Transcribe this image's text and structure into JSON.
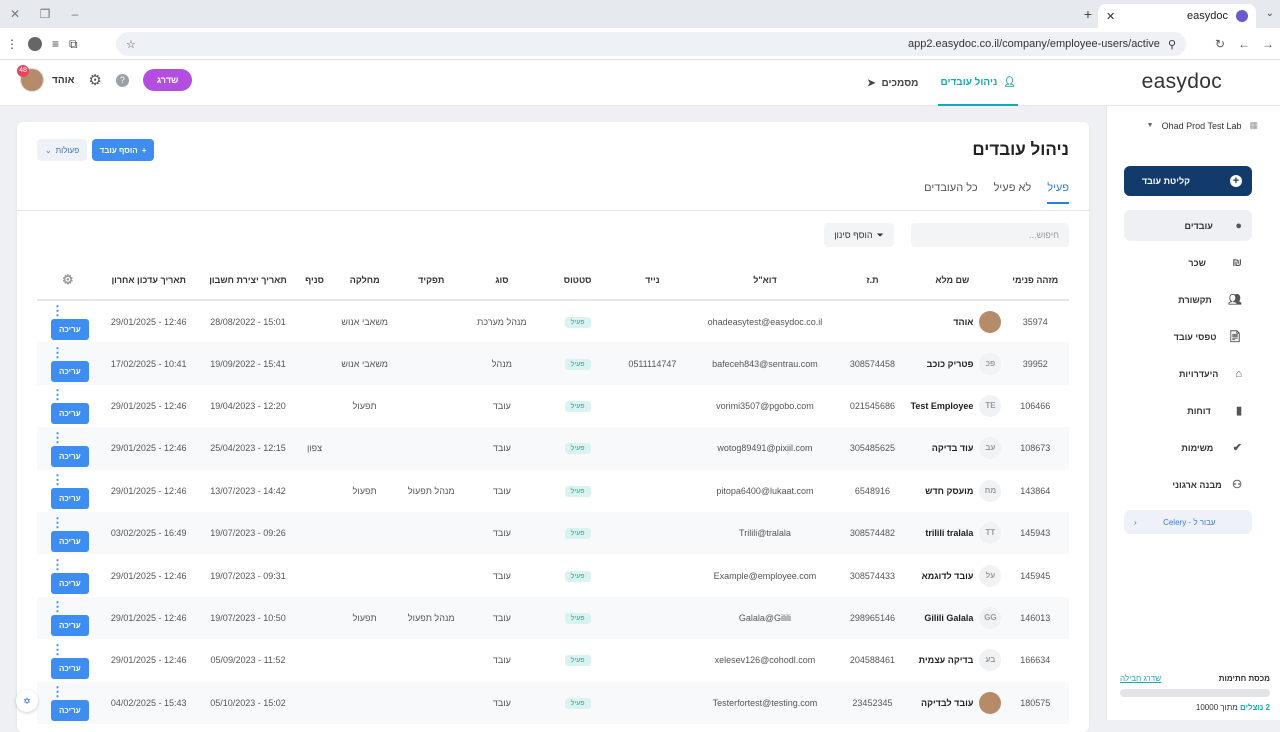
{
  "browser": {
    "tab_title": "easydoc",
    "url": "app2.easydoc.co.il/company/employee-users/active"
  },
  "header": {
    "logo": "easydoc",
    "nav": [
      {
        "label": "ניהול עובדים",
        "icon": "person-icon",
        "active": true
      },
      {
        "label": "מסמכים",
        "icon": "send-icon",
        "active": false
      }
    ],
    "user_name": "אוהד",
    "notification_count": "48",
    "upgrade_label": "שדרג"
  },
  "sidebar": {
    "company": "Ohad Prod Test Lab",
    "onboard_label": "קליטת עובד",
    "items": [
      {
        "label": "עובדים",
        "icon": "user-circle-icon",
        "active": true
      },
      {
        "label": "שכר",
        "icon": "shekel-icon",
        "active": false
      },
      {
        "label": "תקשורת",
        "icon": "people-icon",
        "active": false
      },
      {
        "label": "טפסי עובד",
        "icon": "forms-icon",
        "active": false
      },
      {
        "label": "היעדרויות",
        "icon": "home-icon",
        "active": false
      },
      {
        "label": "דוחות",
        "icon": "chart-icon",
        "active": false
      },
      {
        "label": "משימות",
        "icon": "check-icon",
        "active": false
      },
      {
        "label": "מבנה ארגוני",
        "icon": "org-icon",
        "active": false
      }
    ],
    "celery_label": "עבור ל - Celery",
    "signatures": {
      "title": "מכסת חתימות",
      "link": "שדרג חבילה",
      "used": "2 נוצלים",
      "total": "מתוך 10000"
    }
  },
  "main": {
    "title": "ניהול עובדים",
    "add_label": "הוסף עובד",
    "actions_label": "פעולות",
    "tabs": [
      "פעיל",
      "לא פעיל",
      "כל העובדים"
    ],
    "search_placeholder": "חיפוש...",
    "filter_label": "הוסף סינון",
    "columns": [
      "מזהה פנימי",
      "שם מלא",
      "ת.ז",
      "דוא\"ל",
      "נייד",
      "סטטוס",
      "סוג",
      "תפקיד",
      "מחלקה",
      "סניף",
      "תאריך יצירת חשבון",
      "תאריך עדכון אחרון"
    ],
    "edit_label": "עריכה",
    "rows": [
      {
        "id": "35974",
        "initials": "",
        "photo": true,
        "name": "אוהד",
        "tz": "",
        "email": "ohadeasytest@easydoc.co.il",
        "mobile": "",
        "status": "פעיל",
        "type": "מנהל מערכת",
        "role": "",
        "dept": "משאבי אנוש",
        "branch": "",
        "created": "15:01 - 28/08/2022",
        "updated": "12:46 - 29/01/2025"
      },
      {
        "id": "39952",
        "initials": "פכ",
        "photo": false,
        "name": "פטריק כוכב",
        "tz": "308574458",
        "email": "bafeceh843@sentrau.com",
        "mobile": "0511114747",
        "status": "פעיל",
        "type": "מנהל",
        "role": "",
        "dept": "משאבי אנוש",
        "branch": "",
        "created": "15:41 - 19/09/2022",
        "updated": "10:41 - 17/02/2025"
      },
      {
        "id": "106466",
        "initials": "TE",
        "photo": false,
        "name": "Test Employee",
        "tz": "021545686",
        "email": "vorimi3507@pgobo.com",
        "mobile": "",
        "status": "פעיל",
        "type": "עובד",
        "role": "",
        "dept": "תפעול",
        "branch": "",
        "created": "12:20 - 19/04/2023",
        "updated": "12:46 - 29/01/2025"
      },
      {
        "id": "108673",
        "initials": "עב",
        "photo": false,
        "name": "עוד בדיקה",
        "tz": "305485625",
        "email": "wotog89491@pixiil.com",
        "mobile": "",
        "status": "פעיל",
        "type": "עובד",
        "role": "",
        "dept": "",
        "branch": "צפון",
        "created": "12:15 - 25/04/2023",
        "updated": "12:46 - 29/01/2025"
      },
      {
        "id": "143864",
        "initials": "מח",
        "photo": false,
        "name": "מועסק חדש",
        "tz": "6548916",
        "email": "pitopa6400@lukaat.com",
        "mobile": "",
        "status": "פעיל",
        "type": "עובד",
        "role": "מנהל תפעול",
        "dept": "תפעול",
        "branch": "",
        "created": "14:42 - 13/07/2023",
        "updated": "12:46 - 29/01/2025"
      },
      {
        "id": "145943",
        "initials": "TT",
        "photo": false,
        "name": "trilili tralala",
        "tz": "308574482",
        "email": "Trilili@tralala",
        "mobile": "",
        "status": "פעיל",
        "type": "עובד",
        "role": "",
        "dept": "",
        "branch": "",
        "created": "09:26 - 19/07/2023",
        "updated": "16:49 - 03/02/2025"
      },
      {
        "id": "145945",
        "initials": "על",
        "photo": false,
        "name": "עובד לדוגמא",
        "tz": "308574433",
        "email": "Example@employee.com",
        "mobile": "",
        "status": "פעיל",
        "type": "עובד",
        "role": "",
        "dept": "",
        "branch": "",
        "created": "09:31 - 19/07/2023",
        "updated": "12:46 - 29/01/2025"
      },
      {
        "id": "146013",
        "initials": "GG",
        "photo": false,
        "name": "Gilili Galala",
        "tz": "298965146",
        "email": "Galala@Gilili",
        "mobile": "",
        "status": "פעיל",
        "type": "עובד",
        "role": "מנהל תפעול",
        "dept": "תפעול",
        "branch": "",
        "created": "10:50 - 19/07/2023",
        "updated": "12:46 - 29/01/2025"
      },
      {
        "id": "166634",
        "initials": "בע",
        "photo": false,
        "name": "בדיקה עצמית",
        "tz": "204588461",
        "email": "xelesev126@cohodl.com",
        "mobile": "",
        "status": "פעיל",
        "type": "עובד",
        "role": "",
        "dept": "",
        "branch": "",
        "created": "11:52 - 05/09/2023",
        "updated": "12:46 - 29/01/2025"
      },
      {
        "id": "180575",
        "initials": "",
        "photo": true,
        "name": "עובד לבדיקה",
        "tz": "23452345",
        "email": "Testerfortest@testing.com",
        "mobile": "",
        "status": "פעיל",
        "type": "עובד",
        "role": "",
        "dept": "",
        "branch": "",
        "created": "15:02 - 05/10/2023",
        "updated": "15:43 - 04/02/2025"
      }
    ]
  },
  "colors": {
    "accent": "#3d8ef0",
    "teal": "#1ba6b0",
    "navy": "#123a6b",
    "upgrade": "#b24ee0"
  }
}
